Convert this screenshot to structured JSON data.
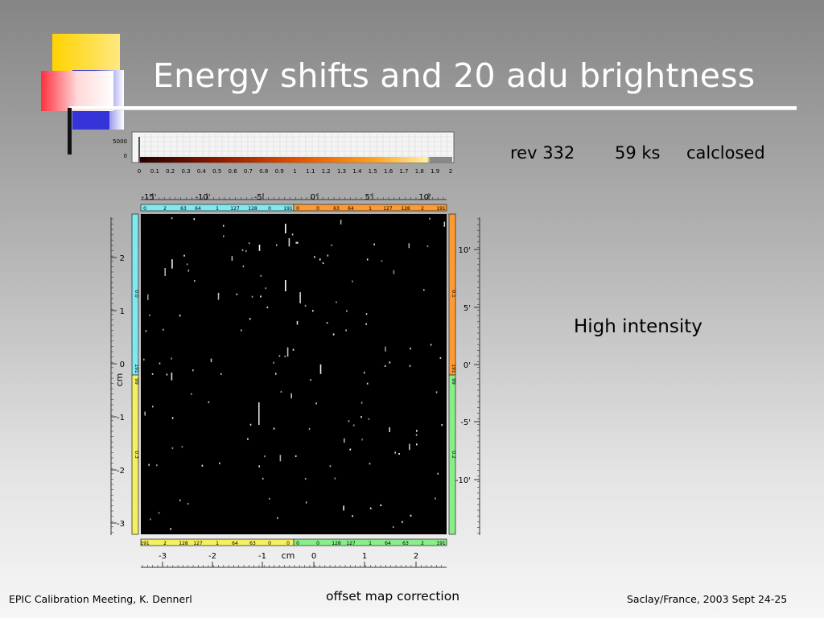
{
  "slide": {
    "title": "Energy shifts and 20 adu brightness",
    "rev": "rev 332",
    "exposure": "59 ks",
    "filter": "calclosed",
    "intensity_label": "High intensity"
  },
  "footer": {
    "left": "EPIC Calibration Meeting, K. Dennerl",
    "center": "offset map correction",
    "right": "Saclay/France, 2003 Sept 24-25"
  },
  "figure": {
    "histogram_y_ticks": [
      "5000",
      "0"
    ],
    "color_scale_ticks": [
      "0",
      "0.1",
      "0.2",
      "0.3",
      "0.4",
      "0.5",
      "0.6",
      "0.7",
      "0.8",
      "0.9",
      "1",
      "1.1",
      "1.2",
      "1.3",
      "1.4",
      "1.5",
      "1.6",
      "1.7",
      "1.8",
      "1.9",
      "2"
    ],
    "top_arcmin_ticks": [
      "-15'",
      "-10'",
      "-5'",
      "0'",
      "5'",
      "10'"
    ],
    "top_strip_left": [
      "0",
      "2",
      "63",
      "64",
      "1",
      "127",
      "128",
      "0",
      "191"
    ],
    "top_strip_right": [
      "0",
      "0",
      "63",
      "64",
      "1",
      "127",
      "128",
      "2",
      "191"
    ],
    "left_cm_ticks": [
      "2",
      "1",
      "0",
      "-1",
      "-2",
      "-3"
    ],
    "left_cm_label": "cm",
    "left_strip_top": [
      "0.0",
      "191",
      "99"
    ],
    "left_strip_bottom": [
      "0.3"
    ],
    "right_strip_top": [
      "0.1",
      "191"
    ],
    "right_strip_bottom": [
      "99",
      "0.2"
    ],
    "right_arcmin_ticks": [
      "10'",
      "5'",
      "0'",
      "-5'",
      "-10'"
    ],
    "bottom_strip_left": [
      "191",
      "2",
      "128",
      "127",
      "1",
      "64",
      "63",
      "0",
      "0"
    ],
    "bottom_strip_right": [
      "0",
      "0",
      "128",
      "127",
      "1",
      "64",
      "63",
      "2",
      "191"
    ],
    "bottom_cm_ticks": [
      "-3",
      "-2",
      "-1",
      "0",
      "1",
      "2"
    ],
    "bottom_cm_label": "cm",
    "colors": {
      "cyan": "#7fe8f0",
      "orange": "#ff9a30",
      "yellow": "#f4f060",
      "green": "#88ee88",
      "image_bg": "#000000"
    }
  }
}
